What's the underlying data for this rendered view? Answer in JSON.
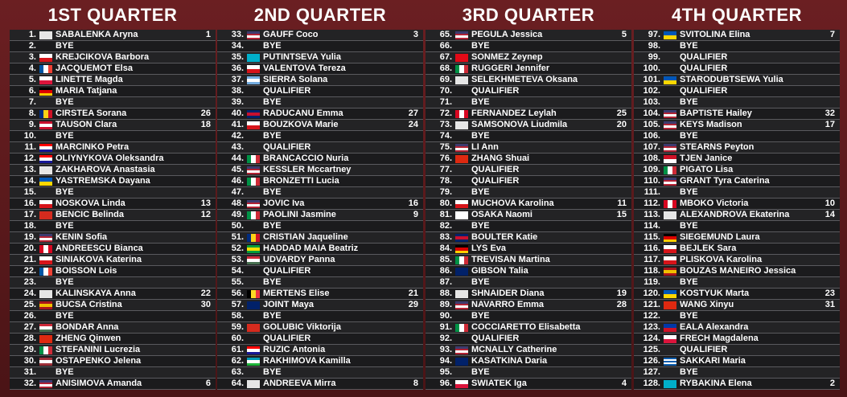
{
  "quarters": [
    {
      "title": "1ST QUARTER",
      "rows": [
        {
          "no": "1.",
          "name": "SABALENKA Aryna",
          "seed": 1,
          "flag": [
            "h",
            "#e6e6e6"
          ]
        },
        {
          "no": "2.",
          "name": "BYE"
        },
        {
          "no": "3.",
          "name": "KREJCIKOVA Barbora",
          "flag": [
            "h",
            "#ffffff",
            "#d7141a"
          ]
        },
        {
          "no": "4.",
          "name": "JACQUEMOT Elsa",
          "flag": [
            "v",
            "#0055a4",
            "#ffffff",
            "#ef4135"
          ]
        },
        {
          "no": "5.",
          "name": "LINETTE Magda",
          "flag": [
            "h",
            "#ffffff",
            "#dc143c"
          ]
        },
        {
          "no": "6.",
          "name": "MARIA Tatjana",
          "flag": [
            "h",
            "#000000",
            "#dd0000",
            "#ffce00"
          ]
        },
        {
          "no": "7.",
          "name": "BYE"
        },
        {
          "no": "8.",
          "name": "CIRSTEA Sorana",
          "seed": 26,
          "flag": [
            "v",
            "#002b7f",
            "#fcd116",
            "#ce1126"
          ]
        },
        {
          "no": "9.",
          "name": "TAUSON Clara",
          "seed": 18,
          "flag": [
            "h",
            "#c8102e",
            "#ffffff",
            "#c8102e"
          ]
        },
        {
          "no": "10.",
          "name": "BYE"
        },
        {
          "no": "11.",
          "name": "MARCINKO Petra",
          "flag": [
            "h",
            "#ff0000",
            "#ffffff",
            "#171796"
          ]
        },
        {
          "no": "12.",
          "name": "OLIYNYKOVA Oleksandra",
          "flag": [
            "h",
            "#ff0000",
            "#ffffff",
            "#171796"
          ]
        },
        {
          "no": "13.",
          "name": "ZAKHAROVA Anastasia",
          "flag": [
            "h",
            "#e6e6e6"
          ]
        },
        {
          "no": "14.",
          "name": "YASTREMSKA Dayana",
          "flag": [
            "h",
            "#0057b7",
            "#ffd700"
          ]
        },
        {
          "no": "15.",
          "name": "BYE"
        },
        {
          "no": "16.",
          "name": "NOSKOVA Linda",
          "seed": 13,
          "flag": [
            "h",
            "#ffffff",
            "#d7141a"
          ]
        },
        {
          "no": "17.",
          "name": "BENCIC Belinda",
          "seed": 12,
          "flag": [
            "h",
            "#d52b1e"
          ]
        },
        {
          "no": "18.",
          "name": "BYE"
        },
        {
          "no": "19.",
          "name": "KENIN Sofia",
          "flag": [
            "h",
            "#3c3b6e",
            "#b22234",
            "#ffffff",
            "#b22234"
          ]
        },
        {
          "no": "20.",
          "name": "ANDREESCU Bianca",
          "flag": [
            "v",
            "#d80621",
            "#ffffff",
            "#d80621"
          ]
        },
        {
          "no": "21.",
          "name": "SINIAKOVA Katerina",
          "flag": [
            "h",
            "#ffffff",
            "#d7141a"
          ]
        },
        {
          "no": "22.",
          "name": "BOISSON Lois",
          "flag": [
            "v",
            "#0055a4",
            "#ffffff",
            "#ef4135"
          ]
        },
        {
          "no": "23.",
          "name": "BYE"
        },
        {
          "no": "24.",
          "name": "KALINSKAYA Anna",
          "seed": 22,
          "flag": [
            "h",
            "#e6e6e6"
          ]
        },
        {
          "no": "25.",
          "name": "BUCSA Cristina",
          "seed": 30,
          "flag": [
            "h",
            "#aa151b",
            "#f1bf00",
            "#aa151b"
          ]
        },
        {
          "no": "26.",
          "name": "BYE"
        },
        {
          "no": "27.",
          "name": "BONDAR Anna",
          "flag": [
            "h",
            "#ce2939",
            "#ffffff",
            "#477050"
          ]
        },
        {
          "no": "28.",
          "name": "ZHENG Qinwen",
          "flag": [
            "h",
            "#de2910"
          ]
        },
        {
          "no": "29.",
          "name": "STEFANINI Lucrezia",
          "flag": [
            "v",
            "#009246",
            "#ffffff",
            "#ce2b37"
          ]
        },
        {
          "no": "30.",
          "name": "OSTAPENKO Jelena",
          "flag": [
            "h",
            "#9e3039",
            "#ffffff",
            "#9e3039"
          ]
        },
        {
          "no": "31.",
          "name": "BYE"
        },
        {
          "no": "32.",
          "name": "ANISIMOVA Amanda",
          "seed": 6,
          "flag": [
            "h",
            "#3c3b6e",
            "#b22234",
            "#ffffff",
            "#b22234"
          ]
        }
      ]
    },
    {
      "title": "2ND QUARTER",
      "rows": [
        {
          "no": "33.",
          "name": "GAUFF Coco",
          "seed": 3,
          "flag": [
            "h",
            "#3c3b6e",
            "#b22234",
            "#ffffff",
            "#b22234"
          ]
        },
        {
          "no": "34.",
          "name": "BYE"
        },
        {
          "no": "35.",
          "name": "PUTINTSEVA Yulia",
          "flag": [
            "h",
            "#00afca"
          ]
        },
        {
          "no": "36.",
          "name": "VALENTOVA Tereza",
          "flag": [
            "h",
            "#ffffff",
            "#d7141a"
          ]
        },
        {
          "no": "37.",
          "name": "SIERRA Solana",
          "flag": [
            "h",
            "#74acdf",
            "#ffffff",
            "#74acdf"
          ]
        },
        {
          "no": "38.",
          "name": "QUALIFIER"
        },
        {
          "no": "39.",
          "name": "BYE"
        },
        {
          "no": "40.",
          "name": "RADUCANU Emma",
          "seed": 27,
          "flag": [
            "h",
            "#012169",
            "#c8102e",
            "#012169"
          ]
        },
        {
          "no": "41.",
          "name": "BOUZKOVA Marie",
          "seed": 24,
          "flag": [
            "h",
            "#ffffff",
            "#d7141a"
          ]
        },
        {
          "no": "42.",
          "name": "BYE"
        },
        {
          "no": "43.",
          "name": "QUALIFIER"
        },
        {
          "no": "44.",
          "name": "BRANCACCIO Nuria",
          "flag": [
            "v",
            "#009246",
            "#ffffff",
            "#ce2b37"
          ]
        },
        {
          "no": "45.",
          "name": "KESSLER Mccartney",
          "flag": [
            "h",
            "#3c3b6e",
            "#b22234",
            "#ffffff",
            "#b22234"
          ]
        },
        {
          "no": "46.",
          "name": "BRONZETTI Lucia",
          "flag": [
            "v",
            "#009246",
            "#ffffff",
            "#ce2b37"
          ]
        },
        {
          "no": "47.",
          "name": "BYE"
        },
        {
          "no": "48.",
          "name": "JOVIC Iva",
          "seed": 16,
          "flag": [
            "h",
            "#3c3b6e",
            "#b22234",
            "#ffffff",
            "#b22234"
          ]
        },
        {
          "no": "49.",
          "name": "PAOLINI Jasmine",
          "seed": 9,
          "flag": [
            "v",
            "#009246",
            "#ffffff",
            "#ce2b37"
          ]
        },
        {
          "no": "50.",
          "name": "BYE"
        },
        {
          "no": "51.",
          "name": "CRISTIAN Jaqueline",
          "flag": [
            "v",
            "#002b7f",
            "#fcd116",
            "#ce1126"
          ]
        },
        {
          "no": "52.",
          "name": "HADDAD MAIA Beatriz",
          "flag": [
            "h",
            "#009c3b",
            "#ffdf00",
            "#009c3b"
          ]
        },
        {
          "no": "53.",
          "name": "UDVARDY Panna",
          "flag": [
            "h",
            "#ce2939",
            "#ffffff",
            "#477050"
          ]
        },
        {
          "no": "54.",
          "name": "QUALIFIER"
        },
        {
          "no": "55.",
          "name": "BYE"
        },
        {
          "no": "56.",
          "name": "MERTENS Elise",
          "seed": 21,
          "flag": [
            "v",
            "#000000",
            "#fdda24",
            "#ef3340"
          ]
        },
        {
          "no": "57.",
          "name": "JOINT Maya",
          "seed": 29,
          "flag": [
            "h",
            "#012169"
          ]
        },
        {
          "no": "58.",
          "name": "BYE"
        },
        {
          "no": "59.",
          "name": "GOLUBIC Viktorija",
          "flag": [
            "h",
            "#d52b1e"
          ]
        },
        {
          "no": "60.",
          "name": "QUALIFIER"
        },
        {
          "no": "61.",
          "name": "RUZIC Antonia",
          "flag": [
            "h",
            "#ff0000",
            "#ffffff",
            "#171796"
          ]
        },
        {
          "no": "62.",
          "name": "RAKHIMOVA Kamilla",
          "flag": [
            "h",
            "#0099b5",
            "#ffffff",
            "#1eb53a"
          ]
        },
        {
          "no": "63.",
          "name": "BYE"
        },
        {
          "no": "64.",
          "name": "ANDREEVA Mirra",
          "seed": 8,
          "flag": [
            "h",
            "#e6e6e6"
          ]
        }
      ]
    },
    {
      "title": "3RD QUARTER",
      "rows": [
        {
          "no": "65.",
          "name": "PEGULA Jessica",
          "seed": 5,
          "flag": [
            "h",
            "#3c3b6e",
            "#b22234",
            "#ffffff",
            "#b22234"
          ]
        },
        {
          "no": "66.",
          "name": "BYE"
        },
        {
          "no": "67.",
          "name": "SONMEZ Zeynep",
          "flag": [
            "h",
            "#e30a17"
          ]
        },
        {
          "no": "68.",
          "name": "RUGGERI Jennifer",
          "flag": [
            "v",
            "#009246",
            "#ffffff",
            "#ce2b37"
          ]
        },
        {
          "no": "69.",
          "name": "SELEKHMETEVA Oksana",
          "flag": [
            "h",
            "#e6e6e6"
          ]
        },
        {
          "no": "70.",
          "name": "QUALIFIER"
        },
        {
          "no": "71.",
          "name": "BYE"
        },
        {
          "no": "72.",
          "name": "FERNANDEZ Leylah",
          "seed": 25,
          "flag": [
            "v",
            "#d80621",
            "#ffffff",
            "#d80621"
          ]
        },
        {
          "no": "73.",
          "name": "SAMSONOVA Liudmila",
          "seed": 20,
          "flag": [
            "h",
            "#e6e6e6"
          ]
        },
        {
          "no": "74.",
          "name": "BYE"
        },
        {
          "no": "75.",
          "name": "LI Ann",
          "flag": [
            "h",
            "#3c3b6e",
            "#b22234",
            "#ffffff",
            "#b22234"
          ]
        },
        {
          "no": "76.",
          "name": "ZHANG Shuai",
          "flag": [
            "h",
            "#de2910"
          ]
        },
        {
          "no": "77.",
          "name": "QUALIFIER"
        },
        {
          "no": "78.",
          "name": "QUALIFIER"
        },
        {
          "no": "79.",
          "name": "BYE"
        },
        {
          "no": "80.",
          "name": "MUCHOVA Karolina",
          "seed": 11,
          "flag": [
            "h",
            "#ffffff",
            "#d7141a"
          ]
        },
        {
          "no": "81.",
          "name": "OSAKA Naomi",
          "seed": 15,
          "flag": [
            "h",
            "#ffffff"
          ]
        },
        {
          "no": "82.",
          "name": "BYE"
        },
        {
          "no": "83.",
          "name": "BOULTER Katie",
          "flag": [
            "h",
            "#012169",
            "#c8102e",
            "#012169"
          ]
        },
        {
          "no": "84.",
          "name": "LYS Eva",
          "flag": [
            "h",
            "#000000",
            "#dd0000",
            "#ffce00"
          ]
        },
        {
          "no": "85.",
          "name": "TREVISAN Martina",
          "flag": [
            "v",
            "#009246",
            "#ffffff",
            "#ce2b37"
          ]
        },
        {
          "no": "86.",
          "name": "GIBSON Talia",
          "flag": [
            "h",
            "#012169"
          ]
        },
        {
          "no": "87.",
          "name": "BYE"
        },
        {
          "no": "88.",
          "name": "SHNAIDER Diana",
          "seed": 19,
          "flag": [
            "h",
            "#e6e6e6"
          ]
        },
        {
          "no": "89.",
          "name": "NAVARRO Emma",
          "seed": 28,
          "flag": [
            "h",
            "#3c3b6e",
            "#b22234",
            "#ffffff",
            "#b22234"
          ]
        },
        {
          "no": "90.",
          "name": "BYE"
        },
        {
          "no": "91.",
          "name": "COCCIARETTO Elisabetta",
          "flag": [
            "v",
            "#009246",
            "#ffffff",
            "#ce2b37"
          ]
        },
        {
          "no": "92.",
          "name": "QUALIFIER"
        },
        {
          "no": "93.",
          "name": "MCNALLY Catherine",
          "flag": [
            "h",
            "#3c3b6e",
            "#b22234",
            "#ffffff",
            "#b22234"
          ]
        },
        {
          "no": "94.",
          "name": "KASATKINA Daria",
          "flag": [
            "h",
            "#012169"
          ]
        },
        {
          "no": "95.",
          "name": "BYE"
        },
        {
          "no": "96.",
          "name": "SWIATEK Iga",
          "seed": 4,
          "flag": [
            "h",
            "#ffffff",
            "#dc143c"
          ]
        }
      ]
    },
    {
      "title": "4TH QUARTER",
      "rows": [
        {
          "no": "97.",
          "name": "SVITOLINA Elina",
          "seed": 7,
          "flag": [
            "h",
            "#0057b7",
            "#ffd700"
          ]
        },
        {
          "no": "98.",
          "name": "BYE"
        },
        {
          "no": "99.",
          "name": "QUALIFIER"
        },
        {
          "no": "100.",
          "name": "QUALIFIER"
        },
        {
          "no": "101.",
          "name": "STARODUBTSEWA Yulia",
          "flag": [
            "h",
            "#0057b7",
            "#ffd700"
          ]
        },
        {
          "no": "102.",
          "name": "QUALIFIER"
        },
        {
          "no": "103.",
          "name": "BYE"
        },
        {
          "no": "104.",
          "name": "BAPTISTE Hailey",
          "seed": 32,
          "flag": [
            "h",
            "#3c3b6e",
            "#b22234",
            "#ffffff",
            "#b22234"
          ]
        },
        {
          "no": "105.",
          "name": "KEYS Madison",
          "seed": 17,
          "flag": [
            "h",
            "#3c3b6e",
            "#b22234",
            "#ffffff",
            "#b22234"
          ]
        },
        {
          "no": "106.",
          "name": "BYE"
        },
        {
          "no": "107.",
          "name": "STEARNS Peyton",
          "flag": [
            "h",
            "#3c3b6e",
            "#b22234",
            "#ffffff",
            "#b22234"
          ]
        },
        {
          "no": "108.",
          "name": "TJEN Janice",
          "flag": [
            "h",
            "#ce1126",
            "#ffffff"
          ]
        },
        {
          "no": "109.",
          "name": "PIGATO Lisa",
          "flag": [
            "v",
            "#009246",
            "#ffffff",
            "#ce2b37"
          ]
        },
        {
          "no": "110.",
          "name": "GRANT Tyra Caterina",
          "flag": [
            "h",
            "#3c3b6e",
            "#b22234",
            "#ffffff",
            "#b22234"
          ]
        },
        {
          "no": "111.",
          "name": "BYE"
        },
        {
          "no": "112.",
          "name": "MBOKO Victoria",
          "seed": 10,
          "flag": [
            "v",
            "#d80621",
            "#ffffff",
            "#d80621"
          ]
        },
        {
          "no": "113.",
          "name": "ALEXANDROVA Ekaterina",
          "seed": 14,
          "flag": [
            "h",
            "#e6e6e6"
          ]
        },
        {
          "no": "114.",
          "name": "BYE"
        },
        {
          "no": "115.",
          "name": "SIEGEMUND Laura",
          "flag": [
            "h",
            "#000000",
            "#dd0000",
            "#ffce00"
          ]
        },
        {
          "no": "116.",
          "name": "BEJLEK Sara",
          "flag": [
            "h",
            "#ffffff",
            "#d7141a"
          ]
        },
        {
          "no": "117.",
          "name": "PLISKOVA Karolina",
          "flag": [
            "h",
            "#ffffff",
            "#d7141a"
          ]
        },
        {
          "no": "118.",
          "name": "BOUZAS MANEIRO Jessica",
          "flag": [
            "h",
            "#aa151b",
            "#f1bf00",
            "#aa151b"
          ]
        },
        {
          "no": "119.",
          "name": "BYE"
        },
        {
          "no": "120.",
          "name": "KOSTYUK Marta",
          "seed": 23,
          "flag": [
            "h",
            "#0057b7",
            "#ffd700"
          ]
        },
        {
          "no": "121.",
          "name": "WANG Xinyu",
          "seed": 31,
          "flag": [
            "h",
            "#de2910"
          ]
        },
        {
          "no": "122.",
          "name": "BYE"
        },
        {
          "no": "123.",
          "name": "EALA Alexandra",
          "flag": [
            "h",
            "#0038a8",
            "#ce1126"
          ]
        },
        {
          "no": "124.",
          "name": "FRECH Magdalena",
          "flag": [
            "h",
            "#ffffff",
            "#dc143c"
          ]
        },
        {
          "no": "125.",
          "name": "QUALIFIER"
        },
        {
          "no": "126.",
          "name": "SAKKARI Maria",
          "flag": [
            "h",
            "#0d5eaf",
            "#ffffff",
            "#0d5eaf",
            "#ffffff",
            "#0d5eaf"
          ]
        },
        {
          "no": "127.",
          "name": "BYE"
        },
        {
          "no": "128.",
          "name": "RYBAKINA Elena",
          "seed": 2,
          "flag": [
            "h",
            "#00afca"
          ]
        }
      ]
    }
  ]
}
